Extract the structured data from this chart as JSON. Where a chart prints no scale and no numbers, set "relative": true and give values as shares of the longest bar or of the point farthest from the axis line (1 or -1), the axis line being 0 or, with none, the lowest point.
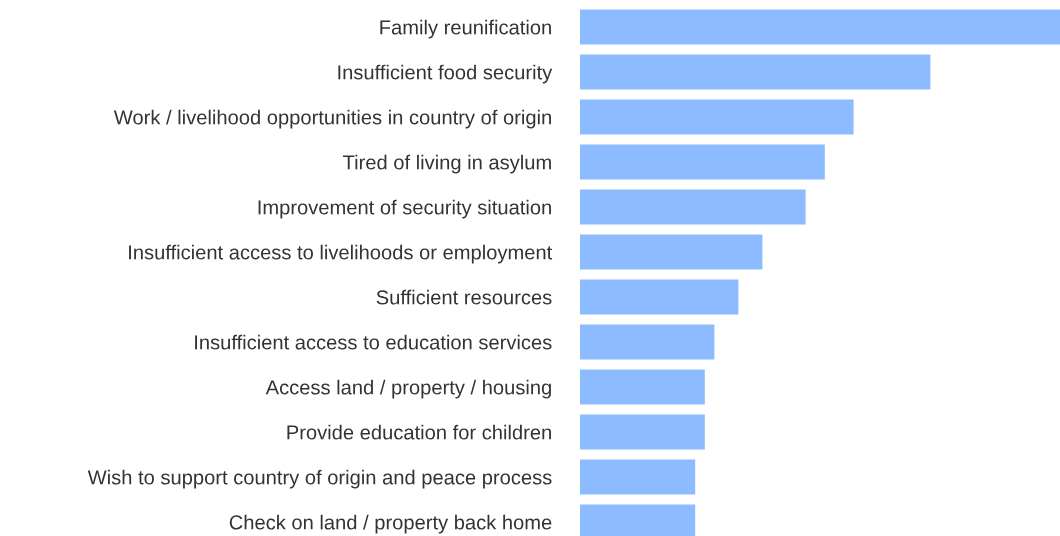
{
  "chart_data": {
    "type": "bar",
    "orientation": "horizontal",
    "relative": true,
    "categories": [
      "Family reunification",
      "Insufficient food security",
      "Work / livelihood opportunities in country of origin",
      "Tired of living in asylum",
      "Improvement of security situation",
      "Insufficient access to livelihoods or employment",
      "Sufficient resources",
      "Insufficient access to education services",
      "Access land / property / housing",
      "Provide education for children",
      "Wish to support country of origin and peace process",
      "Check on land / property back home"
    ],
    "values": [
      1,
      0.73,
      0.57,
      0.51,
      0.47,
      0.38,
      0.33,
      0.28,
      0.26,
      0.26,
      0.24,
      0.24
    ],
    "color": "#8cbcff",
    "grid": false,
    "legend": false
  }
}
